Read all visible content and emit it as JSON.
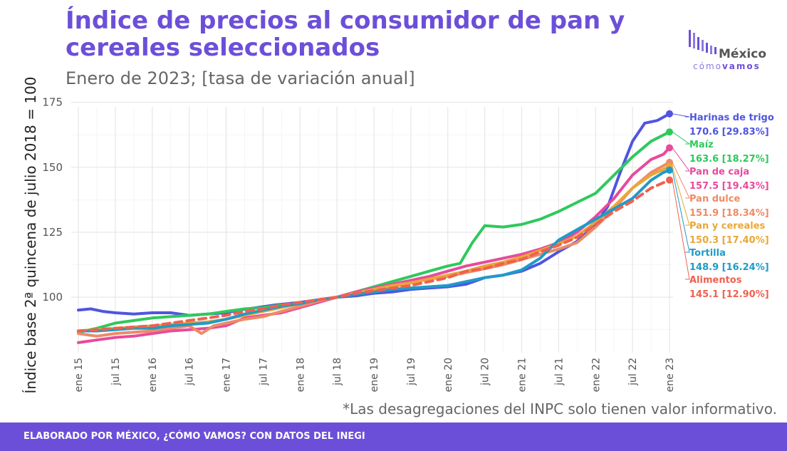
{
  "header": {
    "title": "Índice de precios al consumidor de pan y cereales seleccionados",
    "subtitle": "Enero de 2023; [tasa de variación anual]"
  },
  "logo": {
    "main": "México",
    "sub_a": "cómo",
    "sub_b": "vamos"
  },
  "footnote": "*Las desagregaciones del INPC solo tienen valor informativo.",
  "footer": {
    "text": "ELABORADO POR MÉXICO, ¿CÓMO VAMOS? CON DATOS DEL INEGI"
  },
  "colors": {
    "accent": "#6c4fd8"
  },
  "chart_data": {
    "type": "line",
    "ylabel": "Índice base 2ª quincena de julio 2018 = 100",
    "xlabel": "",
    "ylim": [
      80,
      176
    ],
    "xlim": [
      "2015-01",
      "2023-01"
    ],
    "grid": true,
    "yticks": [
      100,
      125,
      150,
      175
    ],
    "ytick_labels": [
      "100",
      "125",
      "150",
      "175"
    ],
    "x_tick_labels": [
      "ene 15",
      "jul 15",
      "ene 16",
      "jul 16",
      "ene 17",
      "jul 17",
      "ene 18",
      "jul 18",
      "ene 19",
      "jul 19",
      "ene 20",
      "jul 20",
      "ene 21",
      "jul 21",
      "ene 22",
      "jul 22",
      "ene 23"
    ],
    "series": [
      {
        "name": "Harinas de trigo",
        "color": "#4f55e0",
        "end_label": "170.6 [29.83%]",
        "dashed": false,
        "points": [
          [
            "2015-01",
            95
          ],
          [
            "2015-03",
            95.5
          ],
          [
            "2015-05",
            94.5
          ],
          [
            "2015-07",
            94
          ],
          [
            "2015-10",
            93.5
          ],
          [
            "2016-01",
            94
          ],
          [
            "2016-04",
            94
          ],
          [
            "2016-07",
            93
          ],
          [
            "2016-10",
            93.5
          ],
          [
            "2017-01",
            94
          ],
          [
            "2017-03",
            95
          ],
          [
            "2017-06",
            96
          ],
          [
            "2017-09",
            97
          ],
          [
            "2018-01",
            98
          ],
          [
            "2018-04",
            99
          ],
          [
            "2018-07",
            100
          ],
          [
            "2018-10",
            100.5
          ],
          [
            "2019-01",
            101.5
          ],
          [
            "2019-04",
            102
          ],
          [
            "2019-07",
            103
          ],
          [
            "2019-10",
            103.5
          ],
          [
            "2020-01",
            104
          ],
          [
            "2020-04",
            105
          ],
          [
            "2020-07",
            107.5
          ],
          [
            "2020-10",
            108.5
          ],
          [
            "2021-01",
            110
          ],
          [
            "2021-04",
            113
          ],
          [
            "2021-07",
            117.5
          ],
          [
            "2021-10",
            121.5
          ],
          [
            "2022-01",
            128
          ],
          [
            "2022-03",
            135
          ],
          [
            "2022-05",
            148
          ],
          [
            "2022-07",
            160
          ],
          [
            "2022-09",
            167
          ],
          [
            "2022-11",
            168
          ],
          [
            "2023-01",
            170.6
          ]
        ]
      },
      {
        "name": "Maíz",
        "color": "#2ec95c",
        "end_label": "163.6 [18.27%]",
        "dashed": false,
        "points": [
          [
            "2015-01",
            86.5
          ],
          [
            "2015-04",
            88
          ],
          [
            "2015-07",
            90
          ],
          [
            "2015-10",
            91
          ],
          [
            "2016-01",
            92
          ],
          [
            "2016-04",
            92.5
          ],
          [
            "2016-07",
            93
          ],
          [
            "2016-10",
            93.5
          ],
          [
            "2017-01",
            94.5
          ],
          [
            "2017-04",
            95.5
          ],
          [
            "2017-07",
            96
          ],
          [
            "2017-10",
            97
          ],
          [
            "2018-01",
            97.5
          ],
          [
            "2018-04",
            98.5
          ],
          [
            "2018-07",
            100
          ],
          [
            "2018-10",
            102
          ],
          [
            "2019-01",
            104
          ],
          [
            "2019-04",
            106
          ],
          [
            "2019-07",
            108
          ],
          [
            "2019-10",
            110
          ],
          [
            "2020-01",
            112
          ],
          [
            "2020-03",
            113
          ],
          [
            "2020-05",
            121
          ],
          [
            "2020-07",
            127.5
          ],
          [
            "2020-10",
            127
          ],
          [
            "2021-01",
            128
          ],
          [
            "2021-04",
            130
          ],
          [
            "2021-07",
            133
          ],
          [
            "2021-10",
            136.5
          ],
          [
            "2022-01",
            140
          ],
          [
            "2022-04",
            147
          ],
          [
            "2022-07",
            154
          ],
          [
            "2022-10",
            160
          ],
          [
            "2023-01",
            163.6
          ]
        ]
      },
      {
        "name": "Pan de caja",
        "color": "#e84a9c",
        "end_label": "157.5 [19.43%]",
        "dashed": false,
        "points": [
          [
            "2015-01",
            82.5
          ],
          [
            "2015-04",
            83.5
          ],
          [
            "2015-07",
            84.5
          ],
          [
            "2015-10",
            85
          ],
          [
            "2016-01",
            86
          ],
          [
            "2016-04",
            87
          ],
          [
            "2016-07",
            87.5
          ],
          [
            "2016-10",
            88
          ],
          [
            "2017-01",
            89
          ],
          [
            "2017-04",
            92
          ],
          [
            "2017-07",
            93
          ],
          [
            "2017-10",
            94
          ],
          [
            "2018-01",
            96
          ],
          [
            "2018-04",
            98
          ],
          [
            "2018-07",
            100
          ],
          [
            "2018-10",
            102
          ],
          [
            "2019-01",
            103.5
          ],
          [
            "2019-04",
            105
          ],
          [
            "2019-07",
            106.5
          ],
          [
            "2019-10",
            108
          ],
          [
            "2020-01",
            110
          ],
          [
            "2020-04",
            112
          ],
          [
            "2020-07",
            113.5
          ],
          [
            "2020-10",
            115
          ],
          [
            "2021-01",
            116.5
          ],
          [
            "2021-04",
            118.5
          ],
          [
            "2021-07",
            121
          ],
          [
            "2021-10",
            125
          ],
          [
            "2022-01",
            131
          ],
          [
            "2022-04",
            138
          ],
          [
            "2022-07",
            147
          ],
          [
            "2022-10",
            153
          ],
          [
            "2022-12",
            155
          ],
          [
            "2023-01",
            157.5
          ]
        ]
      },
      {
        "name": "Pan dulce",
        "color": "#ee8a66",
        "end_label": "151.9 [18.34%]",
        "dashed": false,
        "points": [
          [
            "2015-01",
            86
          ],
          [
            "2015-04",
            85
          ],
          [
            "2015-07",
            86
          ],
          [
            "2015-10",
            86.5
          ],
          [
            "2016-01",
            87
          ],
          [
            "2016-04",
            88
          ],
          [
            "2016-07",
            89
          ],
          [
            "2016-09",
            86
          ],
          [
            "2016-11",
            89
          ],
          [
            "2017-01",
            90
          ],
          [
            "2017-04",
            91.5
          ],
          [
            "2017-07",
            92.5
          ],
          [
            "2017-10",
            94.5
          ],
          [
            "2018-01",
            96.5
          ],
          [
            "2018-04",
            98.5
          ],
          [
            "2018-07",
            100
          ],
          [
            "2018-10",
            101.5
          ],
          [
            "2019-01",
            103
          ],
          [
            "2019-04",
            104
          ],
          [
            "2019-07",
            105.5
          ],
          [
            "2019-10",
            107
          ],
          [
            "2020-01",
            108
          ],
          [
            "2020-04",
            109.5
          ],
          [
            "2020-07",
            111
          ],
          [
            "2020-10",
            112.5
          ],
          [
            "2021-01",
            114.5
          ],
          [
            "2021-04",
            116.5
          ],
          [
            "2021-07",
            118.5
          ],
          [
            "2021-10",
            121
          ],
          [
            "2022-01",
            127
          ],
          [
            "2022-04",
            134
          ],
          [
            "2022-07",
            142
          ],
          [
            "2022-10",
            148
          ],
          [
            "2023-01",
            151.9
          ]
        ]
      },
      {
        "name": "Pan y cereales",
        "color": "#e8a737",
        "end_label": "150.3 [17.40%]",
        "dashed": false,
        "points": [
          [
            "2015-01",
            87
          ],
          [
            "2015-04",
            87.5
          ],
          [
            "2015-07",
            88
          ],
          [
            "2015-10",
            88.5
          ],
          [
            "2016-01",
            89
          ],
          [
            "2016-04",
            89.5
          ],
          [
            "2016-07",
            90
          ],
          [
            "2016-10",
            90.5
          ],
          [
            "2017-01",
            91.5
          ],
          [
            "2017-04",
            93
          ],
          [
            "2017-07",
            94.5
          ],
          [
            "2017-10",
            96
          ],
          [
            "2018-01",
            97.5
          ],
          [
            "2018-04",
            99
          ],
          [
            "2018-07",
            100
          ],
          [
            "2018-10",
            101.5
          ],
          [
            "2019-01",
            103
          ],
          [
            "2019-04",
            104.5
          ],
          [
            "2019-07",
            105.5
          ],
          [
            "2019-10",
            107
          ],
          [
            "2020-01",
            108.5
          ],
          [
            "2020-04",
            110
          ],
          [
            "2020-07",
            112
          ],
          [
            "2020-10",
            113.5
          ],
          [
            "2021-01",
            115.5
          ],
          [
            "2021-04",
            118
          ],
          [
            "2021-07",
            120.5
          ],
          [
            "2021-10",
            123.5
          ],
          [
            "2022-01",
            129
          ],
          [
            "2022-04",
            135
          ],
          [
            "2022-07",
            142
          ],
          [
            "2022-10",
            147
          ],
          [
            "2023-01",
            150.3
          ]
        ]
      },
      {
        "name": "Tortilla",
        "color": "#1e9bc8",
        "end_label": "148.9 [16.24%]",
        "dashed": false,
        "points": [
          [
            "2015-01",
            87
          ],
          [
            "2015-04",
            87
          ],
          [
            "2015-07",
            87.5
          ],
          [
            "2015-10",
            88
          ],
          [
            "2016-01",
            88
          ],
          [
            "2016-04",
            89
          ],
          [
            "2016-07",
            89.5
          ],
          [
            "2016-10",
            90
          ],
          [
            "2017-01",
            91.5
          ],
          [
            "2017-04",
            93.5
          ],
          [
            "2017-07",
            95
          ],
          [
            "2017-10",
            96.5
          ],
          [
            "2018-01",
            97.5
          ],
          [
            "2018-04",
            99
          ],
          [
            "2018-07",
            100
          ],
          [
            "2018-10",
            101
          ],
          [
            "2019-01",
            102
          ],
          [
            "2019-04",
            103
          ],
          [
            "2019-07",
            103.5
          ],
          [
            "2019-10",
            104
          ],
          [
            "2020-01",
            104.5
          ],
          [
            "2020-04",
            106
          ],
          [
            "2020-07",
            107.5
          ],
          [
            "2020-10",
            108.5
          ],
          [
            "2021-01",
            110.5
          ],
          [
            "2021-04",
            115
          ],
          [
            "2021-07",
            122
          ],
          [
            "2021-10",
            126
          ],
          [
            "2022-01",
            130
          ],
          [
            "2022-04",
            134
          ],
          [
            "2022-07",
            138
          ],
          [
            "2022-10",
            145
          ],
          [
            "2022-12",
            148
          ],
          [
            "2023-01",
            148.9
          ]
        ]
      },
      {
        "name": "Alimentos",
        "color": "#f06050",
        "end_label": "145.1 [12.90%]",
        "dashed": true,
        "points": [
          [
            "2015-01",
            87
          ],
          [
            "2015-04",
            87.5
          ],
          [
            "2015-07",
            88
          ],
          [
            "2015-10",
            88.5
          ],
          [
            "2016-01",
            89
          ],
          [
            "2016-04",
            90
          ],
          [
            "2016-07",
            91
          ],
          [
            "2016-10",
            92
          ],
          [
            "2017-01",
            93
          ],
          [
            "2017-04",
            94.5
          ],
          [
            "2017-07",
            95.5
          ],
          [
            "2017-10",
            97
          ],
          [
            "2018-01",
            98
          ],
          [
            "2018-04",
            99
          ],
          [
            "2018-07",
            100
          ],
          [
            "2018-10",
            101.5
          ],
          [
            "2019-01",
            102.5
          ],
          [
            "2019-04",
            103.5
          ],
          [
            "2019-07",
            104.5
          ],
          [
            "2019-10",
            106
          ],
          [
            "2020-01",
            107.5
          ],
          [
            "2020-04",
            110
          ],
          [
            "2020-07",
            111
          ],
          [
            "2020-10",
            113
          ],
          [
            "2021-01",
            114.5
          ],
          [
            "2021-04",
            117.5
          ],
          [
            "2021-07",
            120
          ],
          [
            "2021-10",
            123
          ],
          [
            "2022-01",
            128
          ],
          [
            "2022-04",
            133
          ],
          [
            "2022-07",
            137
          ],
          [
            "2022-10",
            142
          ],
          [
            "2023-01",
            145.1
          ]
        ]
      }
    ]
  }
}
